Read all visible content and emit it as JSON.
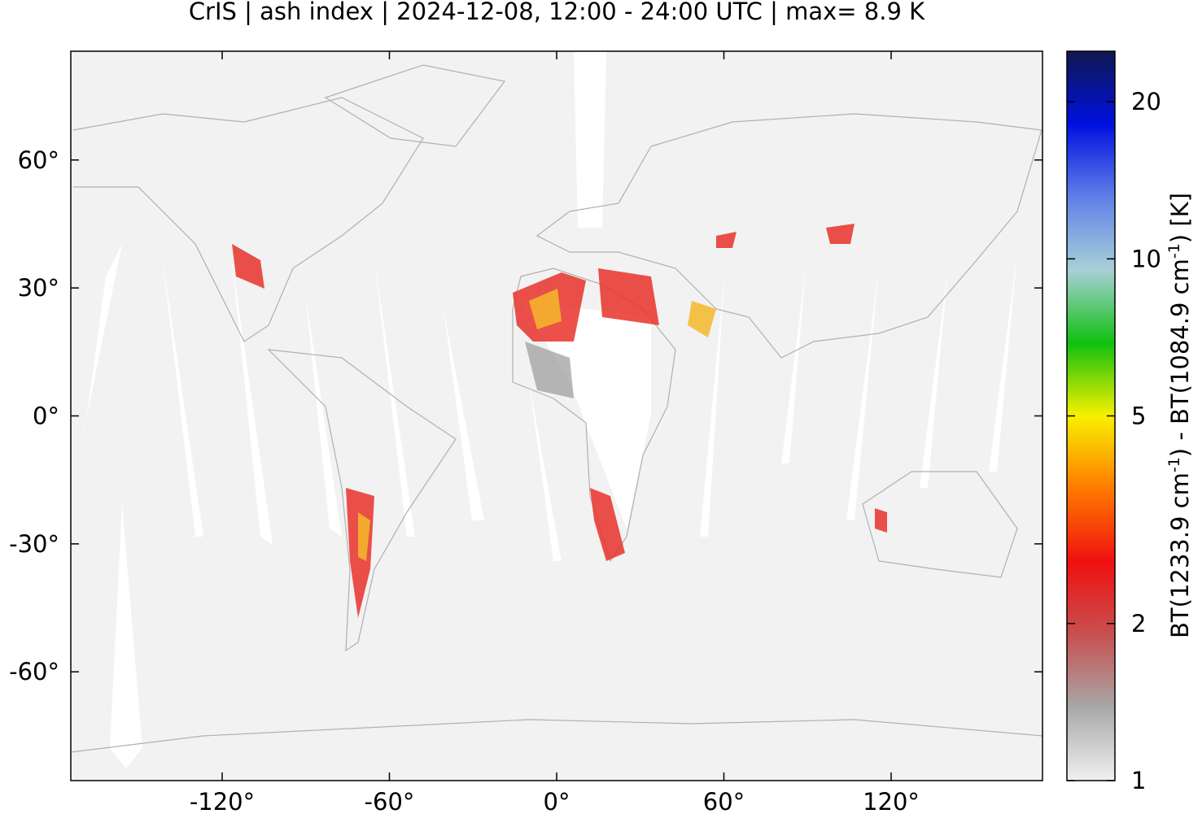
{
  "chart_data": {
    "type": "map",
    "title": "CrIS | ash index | 2024-12-08, 12:00 - 24:00 UTC | max= 8.9 K",
    "xlim": [
      -174.3,
      174.3
    ],
    "ylim": [
      -85.5,
      85.5
    ],
    "xticks": [
      {
        "value": -120,
        "label": "-120°"
      },
      {
        "value": -60,
        "label": "-60°"
      },
      {
        "value": 0,
        "label": "0°"
      },
      {
        "value": 60,
        "label": "60°"
      },
      {
        "value": 120,
        "label": "120°"
      }
    ],
    "yticks": [
      {
        "value": -60,
        "label": "-60°"
      },
      {
        "value": -30,
        "label": "-30°"
      },
      {
        "value": 0,
        "label": "0°"
      },
      {
        "value": 30,
        "label": "30°"
      },
      {
        "value": 60,
        "label": "60°"
      }
    ],
    "colorbar": {
      "log_scale": true,
      "lim": [
        1,
        25
      ],
      "ticks": [
        1,
        2,
        5,
        10,
        20
      ],
      "label": [
        "BT(1233.9 cm",
        "-1",
        ") - BT(1084.9 cm",
        "-1",
        ") [K]"
      ]
    }
  }
}
